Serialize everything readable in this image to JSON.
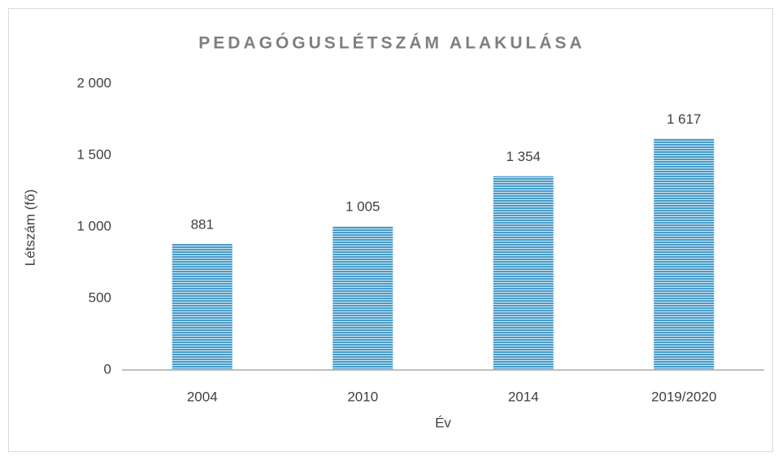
{
  "chart_data": {
    "type": "bar",
    "title": "PEDAGÓGUSLÉTSZÁM ALAKULÁSA",
    "x_label": "Év",
    "y_label": "Létszám (fő)",
    "categories": [
      "2004",
      "2010",
      "2014",
      "2019/2020"
    ],
    "values": [
      881,
      1005,
      1354,
      1617
    ],
    "value_labels": [
      "881",
      "1 005",
      "1 354",
      "1 617"
    ],
    "color": "#4a9cc9",
    "ylim": [
      0,
      2000
    ],
    "yticks": [
      0,
      500,
      {
        "value": 1000,
        "label": "1 000"
      },
      {
        "value": 1500,
        "label": "1 500"
      },
      {
        "value": 2000,
        "label": "2 000"
      }
    ],
    "grid": false
  }
}
